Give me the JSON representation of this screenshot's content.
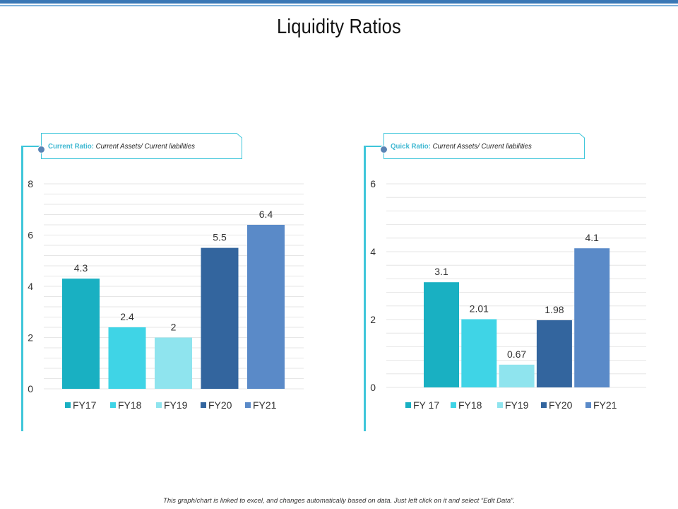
{
  "page": {
    "title": "Liquidity Ratios"
  },
  "footnote": "This graph/chart is linked to excel, and changes automatically based on data. Just left click on it and select “Edit Data”.",
  "colors": {
    "accent": "#3fc6da",
    "band_dark": "#3a78b6",
    "band_light": "#7fb2dc"
  },
  "chart_data": [
    {
      "type": "bar",
      "header_label": "Current Ratio:",
      "header_sub": "Current Assets/ Current liabilities",
      "categories": [
        "FY17",
        "FY18",
        "FY19",
        "FY20",
        "FY21"
      ],
      "values": [
        4.3,
        2.4,
        2,
        5.5,
        6.4
      ],
      "value_labels": [
        "4.3",
        "2.4",
        "2",
        "5.5",
        "6.4"
      ],
      "colors": [
        "#19b0c2",
        "#3fd4e6",
        "#8fe4ee",
        "#33659e",
        "#5a8ac8"
      ],
      "ylim": [
        0,
        8
      ],
      "yticks": [
        0,
        2,
        4,
        6,
        8
      ],
      "minor_step": 0.4,
      "legend": "bottom",
      "grid": true
    },
    {
      "type": "bar",
      "header_label": "Quick Ratio:",
      "header_sub": "Current Assets/ Current liabilities",
      "categories": [
        "FY 17",
        "FY18",
        "FY19",
        "FY20",
        "FY21"
      ],
      "values": [
        3.1,
        2.01,
        0.67,
        1.98,
        4.1
      ],
      "value_labels": [
        "3.1",
        "2.01",
        "0.67",
        "1.98",
        "4.1"
      ],
      "colors": [
        "#19b0c2",
        "#3fd4e6",
        "#8fe4ee",
        "#33659e",
        "#5a8ac8"
      ],
      "ylim": [
        0,
        6
      ],
      "yticks": [
        0,
        2,
        4,
        6
      ],
      "minor_step": 0.4,
      "legend": "bottom",
      "grid": true
    }
  ]
}
